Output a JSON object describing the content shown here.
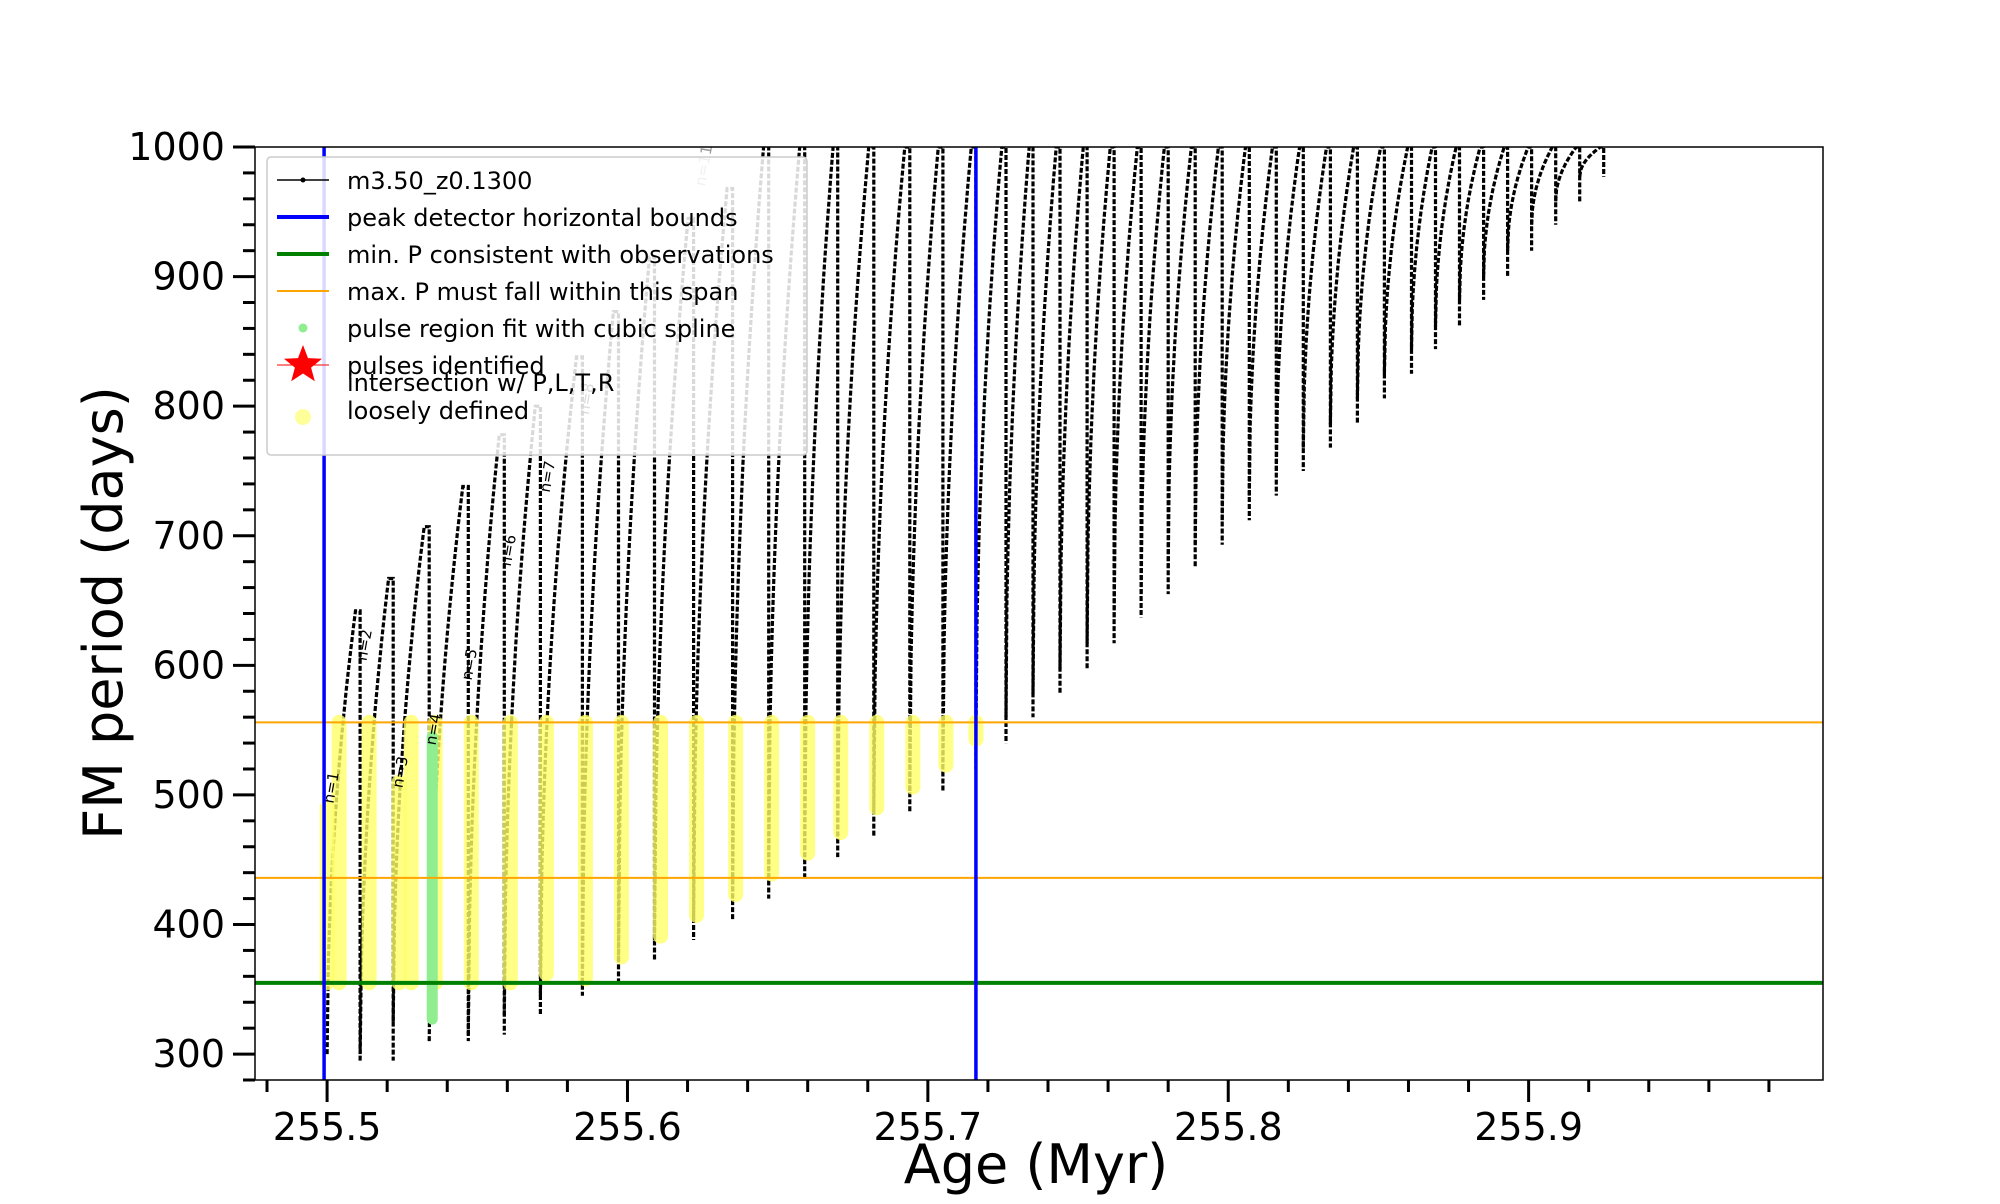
{
  "chart_data": {
    "type": "line",
    "title": "",
    "xlabel": "Age (Myr)",
    "ylabel": "FM period (days)",
    "xlim": [
      255.476,
      255.998
    ],
    "ylim": [
      280,
      1000
    ],
    "x_ticks": [
      255.5,
      255.6,
      255.7,
      255.8,
      255.9
    ],
    "x_tick_labels": [
      "255.5",
      "255.6",
      "255.7",
      "255.8",
      "255.9"
    ],
    "y_ticks": [
      300,
      400,
      500,
      600,
      700,
      800,
      900,
      1000
    ],
    "y_tick_labels": [
      "300",
      "400",
      "500",
      "600",
      "700",
      "800",
      "900",
      "1000"
    ],
    "grid": false,
    "legend_position": "top-left",
    "legend": [
      {
        "label": "m3.50_z0.1300",
        "kind": "line-marker",
        "color": "#000000"
      },
      {
        "label": "peak detector horizontal bounds",
        "kind": "line",
        "color": "#0000ff"
      },
      {
        "label": "min. P consistent with observations",
        "kind": "line",
        "color": "#008000"
      },
      {
        "label": "max. P must fall within this span",
        "kind": "line",
        "color": "#ffa500"
      },
      {
        "label": "pulse region fit with cubic spline",
        "kind": "dot",
        "color": "#90ee90"
      },
      {
        "label": "pulses identified",
        "kind": "star",
        "color": "#ff0000"
      },
      {
        "label": "intersection w/ P,L,T,R\nloosely defined",
        "kind": "circle",
        "color": "#ffff99"
      }
    ],
    "vertical_lines": [
      {
        "x": 255.499,
        "color": "#0000ff",
        "name": "peak detector horizontal bounds"
      },
      {
        "x": 255.716,
        "color": "#0000ff",
        "name": "peak detector horizontal bounds"
      }
    ],
    "horizontal_lines": [
      {
        "y": 355,
        "color": "#008000",
        "name": "min. P consistent with observations"
      },
      {
        "y": 436,
        "color": "#ffa500",
        "name": "max. P must fall within this span"
      },
      {
        "y": 556,
        "color": "#ffa500",
        "name": "max. P must fall within this span"
      }
    ],
    "series": [
      {
        "name": "m3.50_z0.1300",
        "color": "#000000",
        "pulses": [
          {
            "start": 255.5,
            "end": 255.511,
            "min": 300,
            "max": 642
          },
          {
            "start": 255.511,
            "end": 255.522,
            "min": 295,
            "max": 667
          },
          {
            "start": 255.522,
            "end": 255.534,
            "min": 325,
            "max": 707
          },
          {
            "start": 255.534,
            "end": 255.547,
            "min": 310,
            "max": 738
          },
          {
            "start": 255.547,
            "end": 255.559,
            "min": 315,
            "max": 778
          },
          {
            "start": 255.559,
            "end": 255.571,
            "min": 330,
            "max": 800
          },
          {
            "start": 255.571,
            "end": 255.585,
            "min": 345,
            "max": 838
          },
          {
            "start": 255.585,
            "end": 255.597,
            "min": 355,
            "max": 873
          },
          {
            "start": 255.597,
            "end": 255.609,
            "min": 372,
            "max": 915
          },
          {
            "start": 255.609,
            "end": 255.622,
            "min": 388,
            "max": 945
          },
          {
            "start": 255.622,
            "end": 255.635,
            "min": 404,
            "max": 968
          },
          {
            "start": 255.635,
            "end": 255.647,
            "min": 420,
            "max": 1000
          },
          {
            "start": 255.647,
            "end": 255.659,
            "min": 436,
            "max": 1000
          },
          {
            "start": 255.659,
            "end": 255.67,
            "min": 452,
            "max": 1000
          },
          {
            "start": 255.67,
            "end": 255.682,
            "min": 468,
            "max": 1000
          },
          {
            "start": 255.682,
            "end": 255.694,
            "min": 487,
            "max": 1000
          },
          {
            "start": 255.694,
            "end": 255.705,
            "min": 503,
            "max": 1000
          },
          {
            "start": 255.705,
            "end": 255.716,
            "min": 520,
            "max": 1000
          },
          {
            "start": 255.716,
            "end": 255.726,
            "min": 540,
            "max": 1000
          },
          {
            "start": 255.726,
            "end": 255.735,
            "min": 560,
            "max": 1000
          },
          {
            "start": 255.735,
            "end": 255.744,
            "min": 578,
            "max": 1000
          },
          {
            "start": 255.744,
            "end": 255.753,
            "min": 597,
            "max": 1000
          },
          {
            "start": 255.753,
            "end": 255.762,
            "min": 617,
            "max": 1000
          },
          {
            "start": 255.762,
            "end": 255.771,
            "min": 637,
            "max": 1000
          },
          {
            "start": 255.771,
            "end": 255.78,
            "min": 655,
            "max": 1000
          },
          {
            "start": 255.78,
            "end": 255.789,
            "min": 675,
            "max": 1000
          },
          {
            "start": 255.789,
            "end": 255.798,
            "min": 693,
            "max": 1000
          },
          {
            "start": 255.798,
            "end": 255.807,
            "min": 712,
            "max": 1000
          },
          {
            "start": 255.807,
            "end": 255.816,
            "min": 731,
            "max": 1000
          },
          {
            "start": 255.816,
            "end": 255.825,
            "min": 750,
            "max": 1000
          },
          {
            "start": 255.825,
            "end": 255.834,
            "min": 768,
            "max": 1000
          },
          {
            "start": 255.834,
            "end": 255.843,
            "min": 786,
            "max": 1000
          },
          {
            "start": 255.843,
            "end": 255.852,
            "min": 806,
            "max": 1000
          },
          {
            "start": 255.852,
            "end": 255.861,
            "min": 825,
            "max": 1000
          },
          {
            "start": 255.861,
            "end": 255.869,
            "min": 844,
            "max": 1000
          },
          {
            "start": 255.869,
            "end": 255.877,
            "min": 862,
            "max": 1000
          },
          {
            "start": 255.877,
            "end": 255.885,
            "min": 882,
            "max": 1000
          },
          {
            "start": 255.885,
            "end": 255.893,
            "min": 900,
            "max": 1000
          },
          {
            "start": 255.893,
            "end": 255.901,
            "min": 920,
            "max": 1000
          },
          {
            "start": 255.901,
            "end": 255.909,
            "min": 940,
            "max": 1000
          },
          {
            "start": 255.909,
            "end": 255.917,
            "min": 958,
            "max": 1000
          },
          {
            "start": 255.917,
            "end": 255.925,
            "min": 977,
            "max": 1000
          }
        ]
      },
      {
        "name": "intersection w/ P,L,T,R loosely defined",
        "color": "#ffff66",
        "bands": [
          {
            "x": 255.5,
            "ymin": 355,
            "ymax": 490
          },
          {
            "x": 255.504,
            "ymin": 355,
            "ymax": 556
          },
          {
            "x": 255.514,
            "ymin": 355,
            "ymax": 556
          },
          {
            "x": 255.524,
            "ymin": 355,
            "ymax": 510
          },
          {
            "x": 255.528,
            "ymin": 355,
            "ymax": 556
          },
          {
            "x": 255.536,
            "ymin": 355,
            "ymax": 556
          },
          {
            "x": 255.548,
            "ymin": 355,
            "ymax": 556
          },
          {
            "x": 255.561,
            "ymin": 355,
            "ymax": 556
          },
          {
            "x": 255.573,
            "ymin": 362,
            "ymax": 556
          },
          {
            "x": 255.586,
            "ymin": 358,
            "ymax": 556
          },
          {
            "x": 255.598,
            "ymin": 375,
            "ymax": 556
          },
          {
            "x": 255.611,
            "ymin": 391,
            "ymax": 556
          },
          {
            "x": 255.623,
            "ymin": 407,
            "ymax": 556
          },
          {
            "x": 255.636,
            "ymin": 423,
            "ymax": 556
          },
          {
            "x": 255.648,
            "ymin": 439,
            "ymax": 556
          },
          {
            "x": 255.66,
            "ymin": 455,
            "ymax": 556
          },
          {
            "x": 255.671,
            "ymin": 471,
            "ymax": 556
          },
          {
            "x": 255.683,
            "ymin": 490,
            "ymax": 556
          },
          {
            "x": 255.695,
            "ymin": 506,
            "ymax": 556
          },
          {
            "x": 255.706,
            "ymin": 523,
            "ymax": 556
          },
          {
            "x": 255.716,
            "ymin": 543,
            "ymax": 556
          }
        ]
      },
      {
        "name": "pulse region fit with cubic spline",
        "color": "#90ee90",
        "bands": [
          {
            "x": 255.535,
            "ymin": 327,
            "ymax": 545
          }
        ]
      }
    ],
    "annotations": [
      {
        "text": "n=1",
        "x": 255.503,
        "y": 505
      },
      {
        "text": "n=2",
        "x": 255.514,
        "y": 615
      },
      {
        "text": "n=3",
        "x": 255.526,
        "y": 517
      },
      {
        "text": "n=4",
        "x": 255.537,
        "y": 550
      },
      {
        "text": "n=5",
        "x": 255.549,
        "y": 600
      },
      {
        "text": "n=6",
        "x": 255.562,
        "y": 688
      },
      {
        "text": "n=7",
        "x": 255.575,
        "y": 745
      },
      {
        "text": "n=8",
        "x": 255.588,
        "y": 805
      },
      {
        "text": "n=11",
        "x": 255.627,
        "y": 985
      }
    ]
  }
}
